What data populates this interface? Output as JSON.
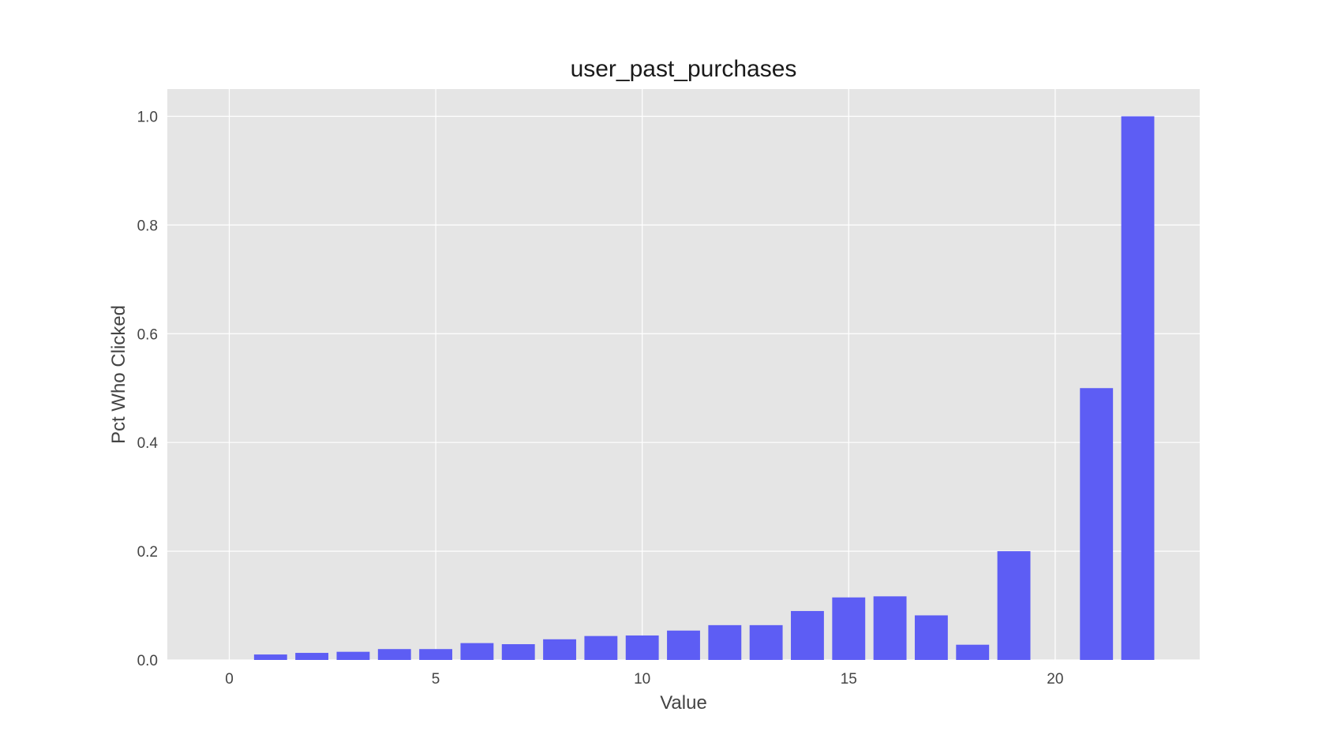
{
  "chart_data": {
    "type": "bar",
    "title": "user_past_purchases",
    "xlabel": "Value",
    "ylabel": "Pct Who Clicked",
    "x": [
      1,
      2,
      3,
      4,
      5,
      6,
      7,
      8,
      9,
      10,
      11,
      12,
      13,
      14,
      15,
      16,
      17,
      18,
      19,
      21,
      22
    ],
    "values": [
      0.01,
      0.013,
      0.015,
      0.02,
      0.02,
      0.031,
      0.029,
      0.038,
      0.044,
      0.045,
      0.054,
      0.064,
      0.064,
      0.09,
      0.115,
      0.117,
      0.082,
      0.028,
      0.2,
      0.5,
      1.0
    ],
    "xlim": [
      -1.5,
      23.5
    ],
    "ylim": [
      0,
      1.05
    ],
    "xticks": [
      0,
      5,
      10,
      15,
      20
    ],
    "yticks": [
      0.0,
      0.2,
      0.4,
      0.6,
      0.8,
      1.0
    ],
    "ytick_labels": [
      "0.0",
      "0.2",
      "0.4",
      "0.6",
      "0.8",
      "1.0"
    ],
    "grid": true,
    "bar_color": "#5a5af4",
    "background_color": "#e5e5e5"
  }
}
